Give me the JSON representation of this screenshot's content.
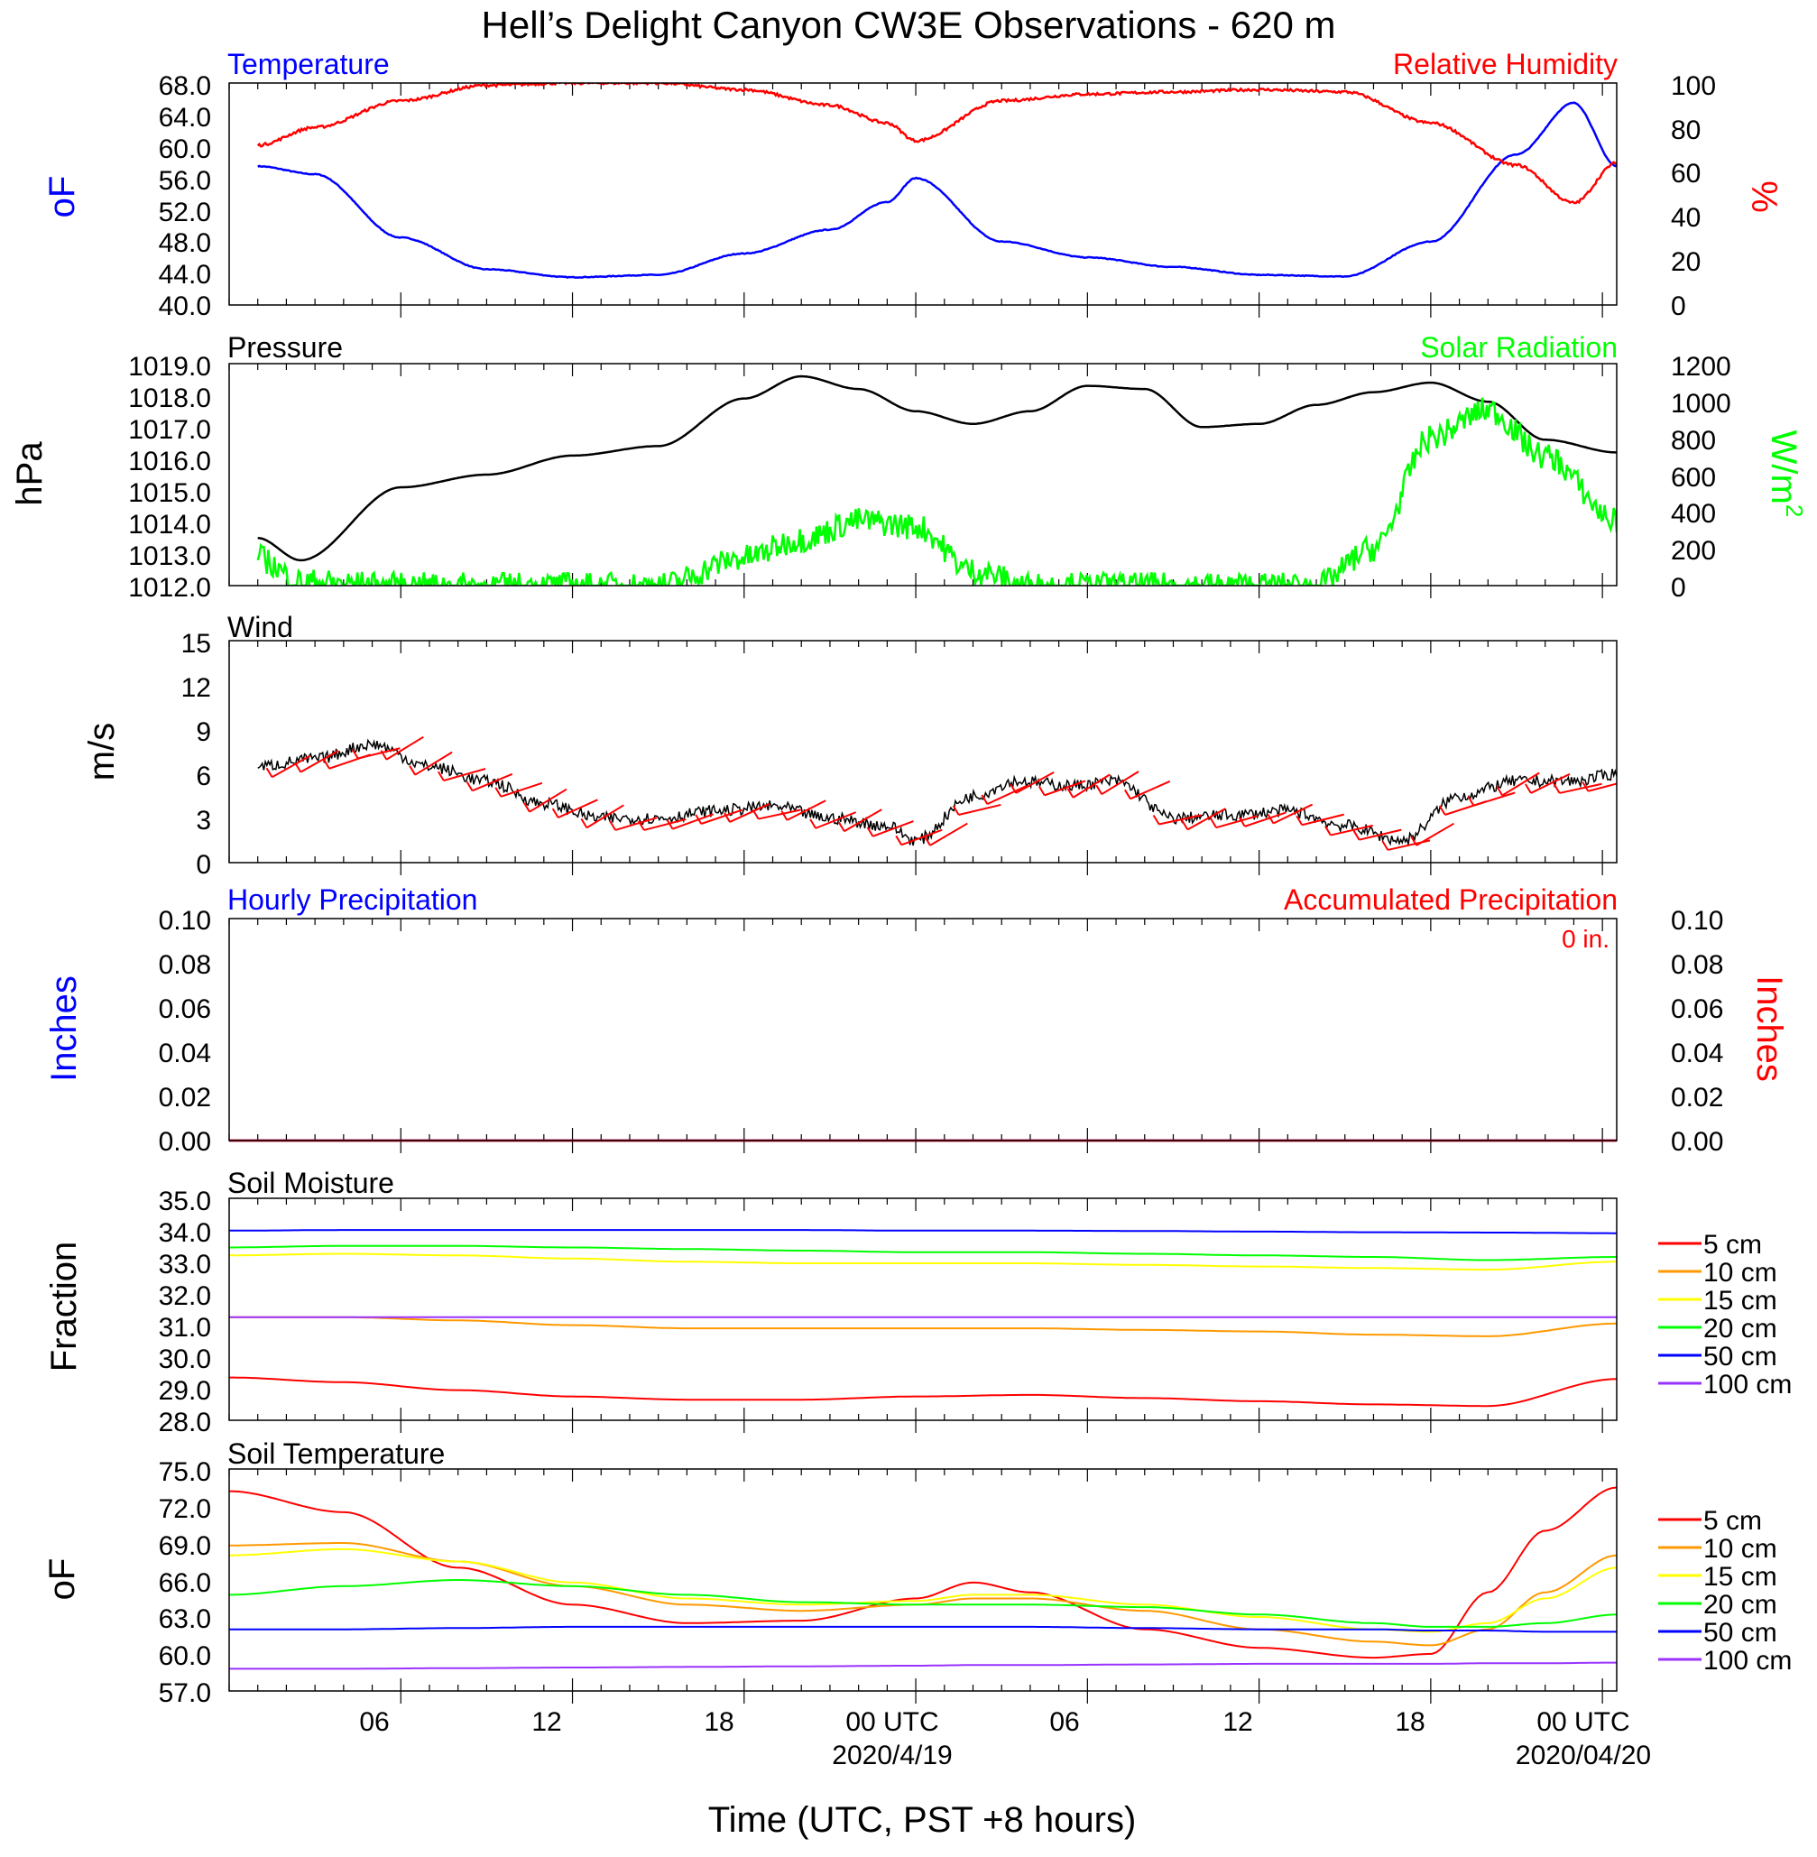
{
  "figure": {
    "title": "Hell’s Delight Canyon CW3E Observations - 620 m",
    "xlabel": "Time (UTC, PST +8 hours)",
    "x_ticks": [
      "06",
      "12",
      "18",
      "00 UTC",
      "06",
      "12",
      "18",
      "00 UTC"
    ],
    "x_dates": [
      "2020/4/19",
      "2020/04/20"
    ]
  },
  "colors": {
    "temperature": "#0000ff",
    "relative_humidity": "#ff0000",
    "pressure": "#000000",
    "solar_radiation": "#00ff00",
    "wind_speed": "#000000",
    "wind_barbs": "#ff0000",
    "hourly_precip": "#0000ff",
    "accum_precip": "#ff0000"
  },
  "panels": {
    "temp_rh": {
      "left_title": "Temperature",
      "right_title": "Relative Humidity",
      "ylabel_left": "oF",
      "ylabel_right": "%",
      "left_ticks": [
        "40.0",
        "44.0",
        "48.0",
        "52.0",
        "56.0",
        "60.0",
        "64.0",
        "68.0"
      ],
      "right_ticks": [
        "0",
        "20",
        "40",
        "60",
        "80",
        "100"
      ]
    },
    "pressure_solar": {
      "left_title": "Pressure",
      "right_title": "Solar Radiation",
      "ylabel_left": "hPa",
      "ylabel_right": "W/m",
      "ylabel_right_sup": "2",
      "left_ticks": [
        "1012.0",
        "1013.0",
        "1014.0",
        "1015.0",
        "1016.0",
        "1017.0",
        "1018.0",
        "1019.0"
      ],
      "right_ticks": [
        "0",
        "200",
        "400",
        "600",
        "800",
        "1000",
        "1200"
      ]
    },
    "wind": {
      "left_title": "Wind",
      "ylabel_left": "m/s",
      "left_ticks": [
        "0",
        "3",
        "6",
        "9",
        "12",
        "15"
      ]
    },
    "precip": {
      "left_title": "Hourly Precipitation",
      "right_title": "Accumulated Precipitation",
      "accum_text": "0 in.",
      "ylabel_left": "Inches",
      "ylabel_right": "Inches",
      "left_ticks": [
        "0.00",
        "0.02",
        "0.04",
        "0.06",
        "0.08",
        "0.10"
      ],
      "right_ticks": [
        "0.00",
        "0.02",
        "0.04",
        "0.06",
        "0.08",
        "0.10"
      ]
    },
    "soil_moisture": {
      "left_title": "Soil Moisture",
      "ylabel_left": "Fraction",
      "left_ticks": [
        "28.0",
        "29.0",
        "30.0",
        "31.0",
        "32.0",
        "33.0",
        "34.0",
        "35.0"
      ],
      "legend": [
        "5 cm",
        "10 cm",
        "15 cm",
        "20 cm",
        "50 cm",
        "100 cm"
      ]
    },
    "soil_temp": {
      "left_title": "Soil Temperature",
      "ylabel_left": "oF",
      "left_ticks": [
        "57.0",
        "60.0",
        "63.0",
        "66.0",
        "69.0",
        "72.0",
        "75.0"
      ],
      "legend": [
        "5 cm",
        "10 cm",
        "15 cm",
        "20 cm",
        "50 cm",
        "100 cm"
      ]
    }
  },
  "legend_colors": [
    "#ff0000",
    "#ff9900",
    "#ffff00",
    "#00ff00",
    "#0000ff",
    "#9933ff"
  ],
  "chart_data": [
    {
      "type": "line",
      "x_hours": [
        1,
        3,
        6,
        9,
        12,
        15,
        18,
        21,
        23,
        24,
        27,
        30,
        33,
        36,
        39,
        42,
        45,
        47,
        48.5
      ],
      "series": [
        {
          "axis": "left",
          "values": [
            57.5,
            56.5,
            48.5,
            44.5,
            43.5,
            43.8,
            46.5,
            49.5,
            53,
            56,
            48,
            46,
            44.8,
            43.8,
            43.6,
            48,
            59,
            65.5,
            57.5
          ]
        },
        {
          "axis": "right",
          "values": [
            72,
            80,
            92,
            99,
            100,
            100,
            97,
            90,
            82,
            74,
            92,
            95,
            96,
            97,
            96,
            82,
            63,
            46,
            64
          ]
        }
      ],
      "left_range": [
        40,
        68
      ],
      "right_range": [
        0,
        100
      ]
    },
    {
      "type": "line",
      "x_hours": [
        1,
        2.5,
        6,
        9,
        12,
        15,
        18,
        20,
        22,
        24,
        26,
        28,
        30,
        32,
        34,
        36,
        38,
        40,
        42,
        44,
        46,
        48.5
      ],
      "series": [
        {
          "axis": "left",
          "values": [
            1013.5,
            1012.8,
            1015.1,
            1015.5,
            1016.1,
            1016.4,
            1017.9,
            1018.6,
            1018.2,
            1017.5,
            1017.1,
            1017.5,
            1018.3,
            1018.2,
            1017.0,
            1017.1,
            1017.7,
            1018.1,
            1018.4,
            1017.8,
            1016.6,
            1016.2
          ]
        },
        {
          "axis": "right",
          "values": [
            150,
            20,
            0,
            0,
            0,
            0,
            150,
            250,
            350,
            320,
            80,
            0,
            0,
            0,
            0,
            0,
            0,
            200,
            800,
            950,
            700,
            350
          ]
        }
      ],
      "left_range": [
        1012,
        1019
      ],
      "right_range": [
        0,
        1200
      ]
    },
    {
      "type": "line",
      "x_hours": [
        1,
        3,
        5,
        7,
        9,
        11,
        13,
        15,
        17,
        19,
        21,
        23,
        24,
        26,
        27.5,
        29.5,
        31,
        33,
        35,
        37,
        39,
        41,
        43,
        45,
        47,
        48.5
      ],
      "series": [
        {
          "name": "",
          "values": [
            6.5,
            7.0,
            8.0,
            6.5,
            5.5,
            4.0,
            3.0,
            3.0,
            3.5,
            3.8,
            3.0,
            2.5,
            1.5,
            4.5,
            5.5,
            5.2,
            5.5,
            3.0,
            3.2,
            3.5,
            2.5,
            1.5,
            4.5,
            5.5,
            5.5,
            6.0
          ]
        }
      ],
      "left_range": [
        0,
        15
      ]
    },
    {
      "type": "line",
      "x_hours": [
        0,
        48.5
      ],
      "series": [
        {
          "axis": "left",
          "values": [
            0,
            0
          ]
        },
        {
          "axis": "right",
          "values": [
            0,
            0
          ]
        }
      ],
      "left_range": [
        0,
        0.1
      ],
      "right_range": [
        0,
        0.1
      ]
    },
    {
      "type": "line",
      "x_hours": [
        0,
        4,
        8,
        12,
        16,
        20,
        24,
        28,
        32,
        36,
        40,
        44,
        48.5
      ],
      "series": [
        {
          "name": "5 cm",
          "values": [
            29.35,
            29.2,
            28.95,
            28.75,
            28.65,
            28.65,
            28.75,
            28.8,
            28.7,
            28.6,
            28.5,
            28.45,
            29.3
          ]
        },
        {
          "name": "10 cm",
          "values": [
            31.25,
            31.25,
            31.15,
            31.0,
            30.9,
            30.9,
            30.9,
            30.9,
            30.85,
            30.8,
            30.7,
            30.65,
            31.05
          ]
        },
        {
          "name": "15 cm",
          "values": [
            33.2,
            33.25,
            33.2,
            33.1,
            33.0,
            32.95,
            32.95,
            32.95,
            32.9,
            32.85,
            32.8,
            32.75,
            33.0
          ]
        },
        {
          "name": "20 cm",
          "values": [
            33.45,
            33.5,
            33.5,
            33.45,
            33.4,
            33.35,
            33.3,
            33.3,
            33.25,
            33.2,
            33.15,
            33.05,
            33.15
          ]
        },
        {
          "name": "50 cm",
          "values": [
            33.98,
            34.0,
            34.0,
            34.0,
            34.0,
            34.0,
            33.98,
            33.98,
            33.97,
            33.95,
            33.93,
            33.92,
            33.9
          ]
        },
        {
          "name": "100 cm",
          "values": [
            31.25,
            31.25,
            31.25,
            31.25,
            31.25,
            31.25,
            31.25,
            31.25,
            31.25,
            31.25,
            31.25,
            31.25,
            31.25
          ]
        }
      ],
      "left_range": [
        28,
        35
      ]
    },
    {
      "type": "line",
      "x_hours": [
        0,
        4,
        8,
        12,
        16,
        20,
        24,
        26,
        28,
        32,
        36,
        40,
        42,
        44,
        46,
        48.5
      ],
      "series": [
        {
          "name": "5 cm",
          "values": [
            73.2,
            71.5,
            67.0,
            64.0,
            62.5,
            62.7,
            64.5,
            65.8,
            65.0,
            62.0,
            60.5,
            59.7,
            60.0,
            65.0,
            70.0,
            73.5
          ]
        },
        {
          "name": "10 cm",
          "values": [
            68.8,
            69.0,
            67.5,
            65.5,
            64.0,
            63.5,
            64.0,
            64.5,
            64.5,
            63.5,
            62.0,
            61.0,
            60.7,
            62.0,
            65.0,
            68.0
          ]
        },
        {
          "name": "15 cm",
          "values": [
            68.0,
            68.5,
            67.5,
            65.8,
            64.5,
            64.0,
            64.3,
            64.8,
            64.8,
            64.0,
            63.0,
            62.0,
            61.8,
            62.5,
            64.5,
            67.0
          ]
        },
        {
          "name": "20 cm",
          "values": [
            64.8,
            65.5,
            66.0,
            65.5,
            64.8,
            64.2,
            64.0,
            64.0,
            64.0,
            63.8,
            63.2,
            62.5,
            62.2,
            62.2,
            62.5,
            63.2
          ]
        },
        {
          "name": "50 cm",
          "values": [
            62.0,
            62.0,
            62.1,
            62.2,
            62.2,
            62.2,
            62.2,
            62.2,
            62.2,
            62.1,
            62.0,
            62.0,
            61.9,
            61.9,
            61.8,
            61.8
          ]
        },
        {
          "name": "100 cm",
          "values": [
            58.8,
            58.8,
            58.85,
            58.9,
            58.95,
            59.0,
            59.05,
            59.1,
            59.1,
            59.15,
            59.2,
            59.2,
            59.2,
            59.25,
            59.25,
            59.3
          ]
        }
      ],
      "left_range": [
        57,
        75
      ]
    }
  ]
}
